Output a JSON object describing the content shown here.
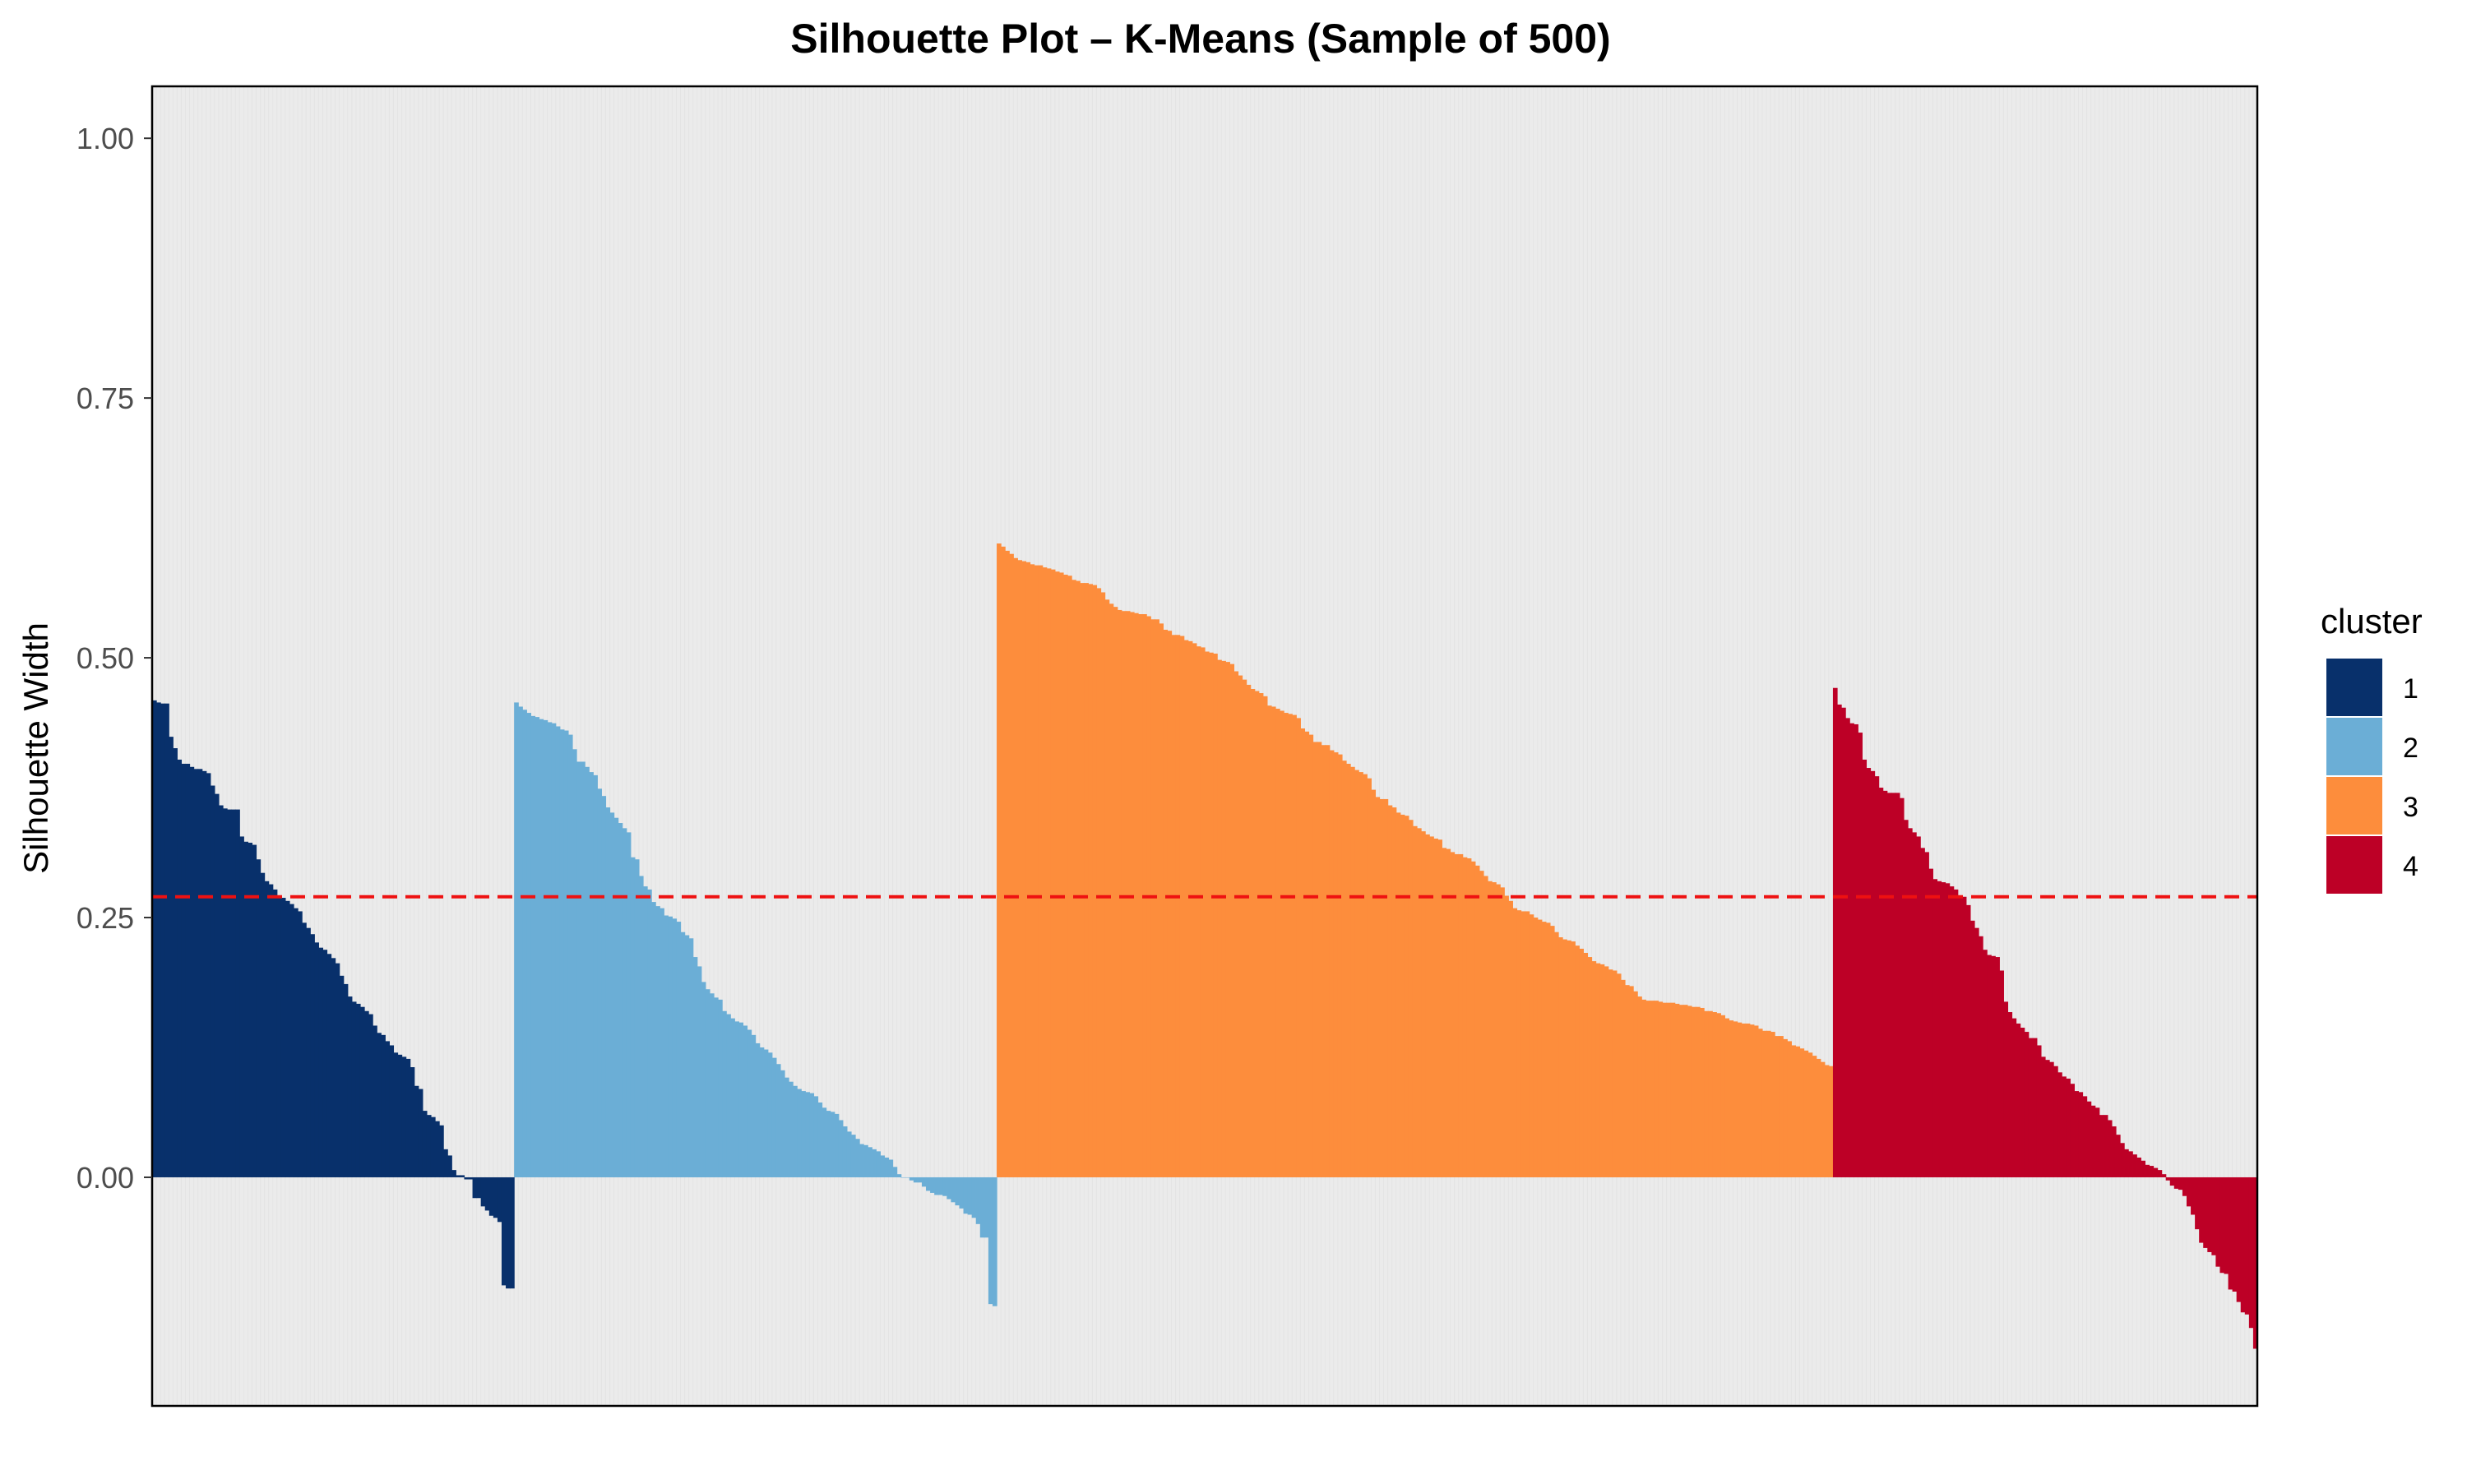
{
  "chart_data": {
    "type": "bar",
    "title": "Silhouette Plot – K-Means (Sample of 500)",
    "xlabel": "",
    "ylabel": "Silhouette Width",
    "ylim": [
      -0.22,
      1.05
    ],
    "yticks": [
      0.0,
      0.25,
      0.5,
      0.75,
      1.0
    ],
    "ytick_labels": [
      "0.00",
      "0.25",
      "0.50",
      "0.75",
      "1.00"
    ],
    "reference_line": {
      "value": 0.27,
      "color": "#ee1111",
      "style": "dashed"
    },
    "panel_background": "#ebebeb",
    "legend": {
      "title": "cluster",
      "position": "right"
    },
    "series": [
      {
        "name": "1",
        "color": "#08306b",
        "count": 87,
        "values": [
          0.459,
          0.457,
          0.456,
          0.456,
          0.424,
          0.413,
          0.402,
          0.398,
          0.398,
          0.395,
          0.393,
          0.393,
          0.391,
          0.389,
          0.377,
          0.369,
          0.358,
          0.355,
          0.354,
          0.354,
          0.354,
          0.328,
          0.323,
          0.322,
          0.32,
          0.306,
          0.293,
          0.285,
          0.282,
          0.277,
          0.271,
          0.269,
          0.266,
          0.263,
          0.259,
          0.256,
          0.245,
          0.24,
          0.234,
          0.226,
          0.221,
          0.219,
          0.215,
          0.211,
          0.206,
          0.194,
          0.186,
          0.174,
          0.169,
          0.167,
          0.164,
          0.16,
          0.157,
          0.146,
          0.139,
          0.137,
          0.131,
          0.127,
          0.12,
          0.118,
          0.116,
          0.114,
          0.106,
          0.088,
          0.085,
          0.064,
          0.06,
          0.058,
          0.054,
          0.05,
          0.027,
          0.021,
          0.007,
          0.002,
          0.002,
          -0.002,
          -0.002,
          -0.02,
          -0.02,
          -0.028,
          -0.032,
          -0.037,
          -0.039,
          -0.043,
          -0.104,
          -0.107,
          -0.107
        ]
      },
      {
        "name": "2",
        "color": "#6baed6",
        "count": 116,
        "values": [
          0.457,
          0.453,
          0.45,
          0.447,
          0.444,
          0.443,
          0.441,
          0.44,
          0.438,
          0.437,
          0.434,
          0.431,
          0.43,
          0.426,
          0.412,
          0.4,
          0.4,
          0.395,
          0.39,
          0.387,
          0.374,
          0.367,
          0.356,
          0.351,
          0.346,
          0.341,
          0.336,
          0.332,
          0.308,
          0.306,
          0.29,
          0.28,
          0.277,
          0.265,
          0.261,
          0.259,
          0.252,
          0.251,
          0.249,
          0.246,
          0.236,
          0.233,
          0.23,
          0.212,
          0.203,
          0.188,
          0.181,
          0.177,
          0.173,
          0.171,
          0.16,
          0.157,
          0.153,
          0.15,
          0.149,
          0.146,
          0.142,
          0.137,
          0.129,
          0.125,
          0.123,
          0.12,
          0.115,
          0.109,
          0.103,
          0.096,
          0.092,
          0.088,
          0.085,
          0.083,
          0.082,
          0.081,
          0.078,
          0.072,
          0.067,
          0.064,
          0.063,
          0.061,
          0.055,
          0.049,
          0.044,
          0.041,
          0.037,
          0.032,
          0.031,
          0.029,
          0.027,
          0.025,
          0.021,
          0.019,
          0.017,
          0.01,
          0.003,
          0.0,
          0.0,
          -0.003,
          -0.005,
          -0.005,
          -0.009,
          -0.013,
          -0.015,
          -0.017,
          -0.017,
          -0.018,
          -0.021,
          -0.024,
          -0.027,
          -0.03,
          -0.035,
          -0.036,
          -0.039,
          -0.045,
          -0.058,
          -0.058,
          -0.122,
          -0.124
        ]
      },
      {
        "name": "3",
        "color": "#fd8d3c",
        "count": 195,
        "values": [
          0.61,
          0.607,
          0.603,
          0.6,
          0.596,
          0.594,
          0.593,
          0.592,
          0.59,
          0.589,
          0.589,
          0.587,
          0.586,
          0.585,
          0.583,
          0.582,
          0.58,
          0.579,
          0.575,
          0.574,
          0.572,
          0.572,
          0.571,
          0.57,
          0.567,
          0.563,
          0.556,
          0.552,
          0.549,
          0.546,
          0.545,
          0.545,
          0.544,
          0.543,
          0.542,
          0.542,
          0.54,
          0.537,
          0.537,
          0.533,
          0.527,
          0.526,
          0.522,
          0.522,
          0.521,
          0.517,
          0.516,
          0.514,
          0.511,
          0.51,
          0.506,
          0.505,
          0.504,
          0.498,
          0.497,
          0.496,
          0.494,
          0.487,
          0.483,
          0.479,
          0.474,
          0.47,
          0.468,
          0.466,
          0.463,
          0.454,
          0.453,
          0.451,
          0.449,
          0.447,
          0.446,
          0.445,
          0.442,
          0.432,
          0.429,
          0.426,
          0.419,
          0.419,
          0.416,
          0.416,
          0.411,
          0.409,
          0.407,
          0.401,
          0.398,
          0.395,
          0.392,
          0.39,
          0.388,
          0.384,
          0.373,
          0.366,
          0.364,
          0.364,
          0.358,
          0.356,
          0.351,
          0.349,
          0.348,
          0.344,
          0.338,
          0.336,
          0.333,
          0.33,
          0.328,
          0.326,
          0.325,
          0.317,
          0.316,
          0.313,
          0.311,
          0.311,
          0.308,
          0.307,
          0.304,
          0.3,
          0.295,
          0.29,
          0.285,
          0.284,
          0.282,
          0.279,
          0.271,
          0.266,
          0.259,
          0.257,
          0.256,
          0.256,
          0.253,
          0.25,
          0.248,
          0.246,
          0.245,
          0.242,
          0.236,
          0.231,
          0.229,
          0.228,
          0.227,
          0.223,
          0.22,
          0.216,
          0.212,
          0.208,
          0.206,
          0.205,
          0.203,
          0.2,
          0.199,
          0.196,
          0.19,
          0.185,
          0.184,
          0.179,
          0.174,
          0.171,
          0.17,
          0.17,
          0.17,
          0.169,
          0.168,
          0.168,
          0.168,
          0.167,
          0.166,
          0.166,
          0.165,
          0.164,
          0.164,
          0.163,
          0.16,
          0.16,
          0.159,
          0.158,
          0.156,
          0.153,
          0.151,
          0.15,
          0.149,
          0.148,
          0.148,
          0.147,
          0.146,
          0.143,
          0.141,
          0.141,
          0.14,
          0.136,
          0.136,
          0.133,
          0.131,
          0.127,
          0.126,
          0.124,
          0.122,
          0.12,
          0.117,
          0.114,
          0.111,
          0.108,
          0.107
        ]
      },
      {
        "name": "4",
        "color": "#bd0026",
        "count": 102,
        "values": [
          0.471,
          0.455,
          0.452,
          0.442,
          0.437,
          0.436,
          0.428,
          0.402,
          0.394,
          0.391,
          0.386,
          0.375,
          0.372,
          0.37,
          0.37,
          0.37,
          0.365,
          0.344,
          0.336,
          0.332,
          0.328,
          0.317,
          0.313,
          0.297,
          0.287,
          0.285,
          0.284,
          0.283,
          0.28,
          0.277,
          0.27,
          0.27,
          0.262,
          0.247,
          0.24,
          0.232,
          0.219,
          0.214,
          0.213,
          0.212,
          0.199,
          0.169,
          0.159,
          0.153,
          0.148,
          0.144,
          0.14,
          0.134,
          0.134,
          0.127,
          0.116,
          0.113,
          0.111,
          0.107,
          0.101,
          0.097,
          0.095,
          0.09,
          0.083,
          0.082,
          0.078,
          0.073,
          0.069,
          0.067,
          0.06,
          0.06,
          0.055,
          0.049,
          0.041,
          0.033,
          0.027,
          0.025,
          0.022,
          0.019,
          0.016,
          0.012,
          0.011,
          0.009,
          0.007,
          0.003,
          -0.003,
          -0.008,
          -0.011,
          -0.012,
          -0.018,
          -0.028,
          -0.036,
          -0.05,
          -0.063,
          -0.068,
          -0.072,
          -0.075,
          -0.086,
          -0.092,
          -0.093,
          -0.108,
          -0.11,
          -0.12,
          -0.13,
          -0.132,
          -0.145,
          -0.165
        ]
      }
    ]
  }
}
